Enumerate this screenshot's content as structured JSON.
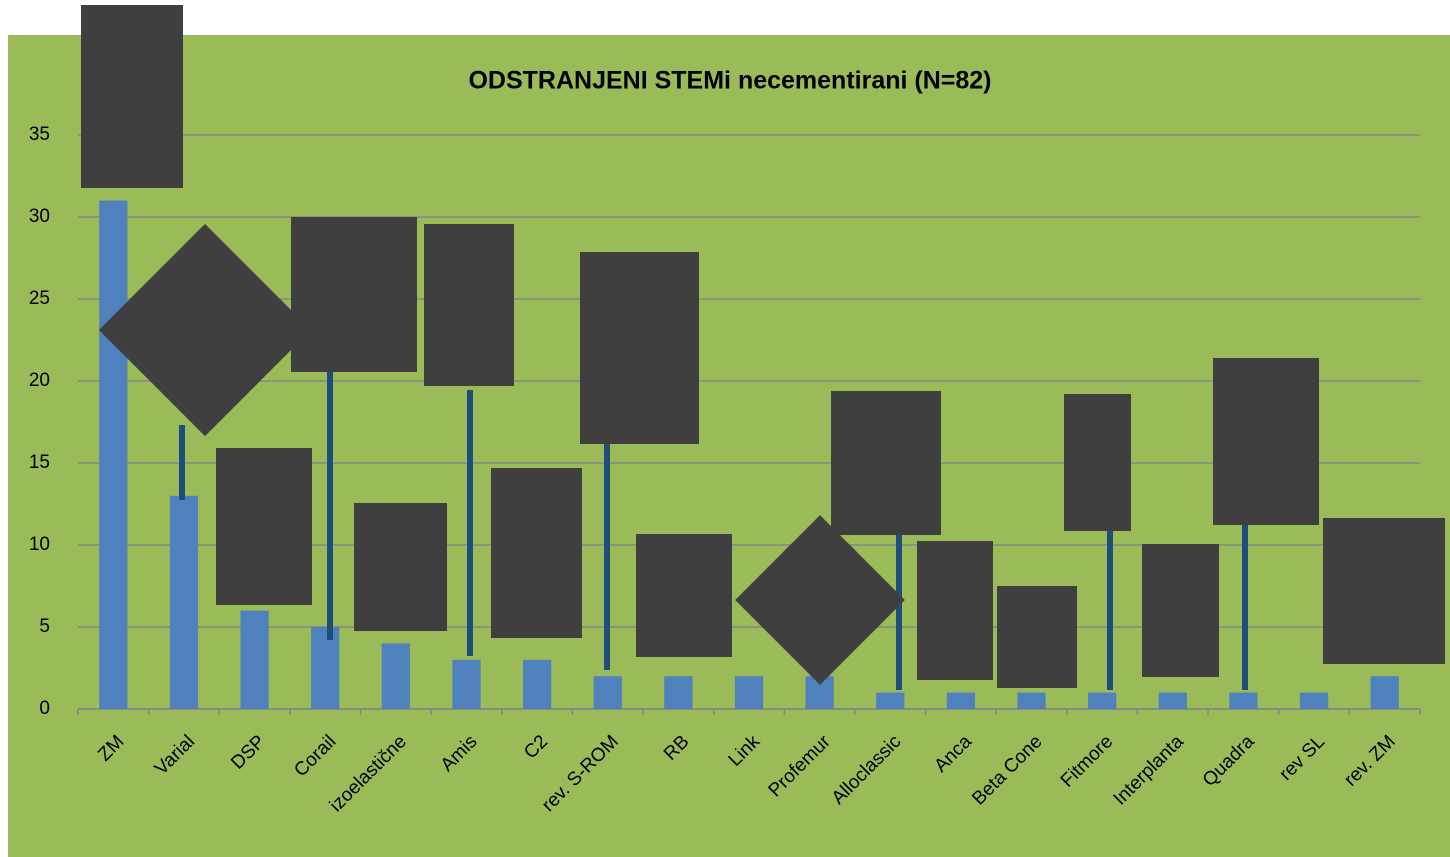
{
  "chart_data": {
    "type": "bar",
    "title": "ODSTRANJENI STEMi necementirani (N=82)",
    "categories": [
      "ZM",
      "Varial",
      "DSP",
      "Corail",
      "izoelastične",
      "Amis",
      "C2",
      "rev. S-ROM",
      "RB",
      "Link",
      "Profemur",
      "Alloclassic",
      "Anca",
      "Beta Cone",
      "Fitmore",
      "Interplanta",
      "Quadra",
      "rev SL",
      "rev. ZM"
    ],
    "values": [
      31,
      13,
      6,
      5,
      4,
      3,
      3,
      2,
      2,
      2,
      2,
      1,
      1,
      1,
      1,
      1,
      1,
      1,
      2
    ],
    "color": "#4f81bd",
    "ylim": [
      0,
      35
    ],
    "yticks": [
      0,
      5,
      10,
      15,
      20,
      25,
      30,
      35
    ],
    "grid": true
  }
}
